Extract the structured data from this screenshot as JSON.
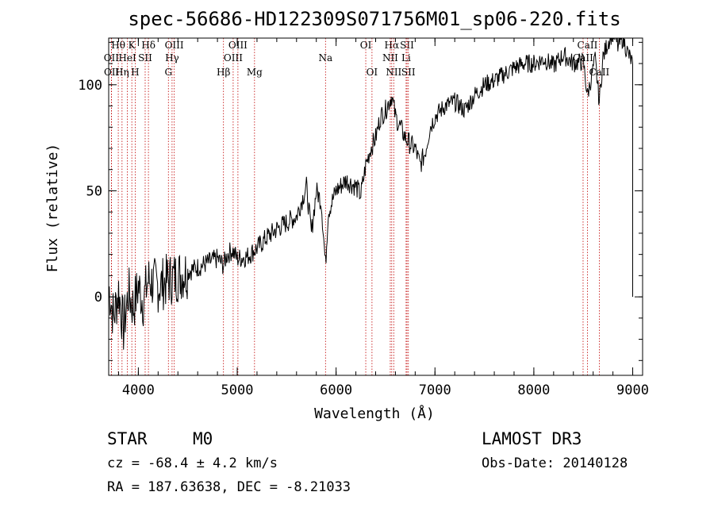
{
  "chart_data": {
    "type": "line",
    "title": "spec-56686-HD122309S071756M01_sp06-220.fits",
    "xlabel": "Wavelength (Å)",
    "ylabel": "Flux (relative)",
    "xlim": [
      3700,
      9100
    ],
    "ylim": [
      -37,
      122
    ],
    "x_ticks": [
      4000,
      5000,
      6000,
      7000,
      8000,
      9000
    ],
    "x_tick_labels": [
      "4000",
      "5000",
      "6000",
      "7000",
      "8000",
      "9000"
    ],
    "y_ticks": [
      0,
      50,
      100
    ],
    "y_tick_labels": [
      "0",
      "50",
      "100"
    ],
    "series": [
      {
        "name": "flux",
        "color": "#000000",
        "x": [
          3700,
          3750,
          3800,
          3850,
          3900,
          3950,
          4000,
          4050,
          4100,
          4200,
          4300,
          4400,
          4500,
          4600,
          4700,
          4800,
          4860,
          4900,
          4950,
          5000,
          5100,
          5200,
          5300,
          5400,
          5500,
          5600,
          5650,
          5700,
          5750,
          5800,
          5850,
          5893,
          5920,
          6000,
          6100,
          6200,
          6250,
          6300,
          6350,
          6400,
          6450,
          6500,
          6563,
          6600,
          6650,
          6700,
          6750,
          6800,
          6850,
          6900,
          6950,
          7000,
          7100,
          7200,
          7300,
          7400,
          7500,
          7600,
          7700,
          7800,
          7900,
          8000,
          8100,
          8200,
          8300,
          8400,
          8500,
          8542,
          8580,
          8620,
          8662,
          8700,
          8750,
          8800,
          8850,
          8900,
          8950,
          9000
        ],
        "y": [
          5,
          -10,
          3,
          -15,
          2,
          -5,
          5,
          -2,
          8,
          5,
          8,
          10,
          12,
          14,
          16,
          18,
          15,
          20,
          22,
          18,
          19,
          23,
          28,
          32,
          35,
          38,
          45,
          52,
          30,
          50,
          45,
          15,
          40,
          50,
          55,
          52,
          48,
          62,
          70,
          75,
          85,
          88,
          95,
          85,
          80,
          75,
          72,
          70,
          62,
          68,
          80,
          85,
          90,
          92,
          88,
          95,
          100,
          102,
          105,
          108,
          110,
          110,
          112,
          109,
          114,
          110,
          111,
          95,
          103,
          112,
          92,
          113,
          120,
          125,
          118,
          122,
          115,
          110
        ]
      }
    ],
    "spectral_lines": [
      {
        "label": "Hθ",
        "wavelength": 3797,
        "row": 1
      },
      {
        "label": "OII",
        "wavelength": 3727,
        "row": 2
      },
      {
        "label": "OII",
        "wavelength": 3729,
        "row": 3
      },
      {
        "label": "K",
        "wavelength": 3934,
        "row": 1
      },
      {
        "label": "HeI",
        "wavelength": 3889,
        "row": 2
      },
      {
        "label": "Hη",
        "wavelength": 3835,
        "row": 3
      },
      {
        "label": "Hδ",
        "wavelength": 4102,
        "row": 1
      },
      {
        "label": "SII",
        "wavelength": 4069,
        "row": 2
      },
      {
        "label": "H",
        "wavelength": 3968,
        "row": 3
      },
      {
        "label": "OIII",
        "wavelength": 4363,
        "row": 1
      },
      {
        "label": "Hγ",
        "wavelength": 4341,
        "row": 2
      },
      {
        "label": "G",
        "wavelength": 4304,
        "row": 3
      },
      {
        "label": "OIII",
        "wavelength": 5007,
        "row": 1
      },
      {
        "label": "OIII",
        "wavelength": 4959,
        "row": 2
      },
      {
        "label": "Hβ",
        "wavelength": 4861,
        "row": 3
      },
      {
        "label": "Mg",
        "wavelength": 5175,
        "row": 3
      },
      {
        "label": "Na",
        "wavelength": 5893,
        "row": 2
      },
      {
        "label": "OI",
        "wavelength": 6300,
        "row": 1
      },
      {
        "label": "OI",
        "wavelength": 6363,
        "row": 3
      },
      {
        "label": "Hα",
        "wavelength": 6563,
        "row": 1
      },
      {
        "label": "SII",
        "wavelength": 6717,
        "row": 1
      },
      {
        "label": "NII",
        "wavelength": 6548,
        "row": 2
      },
      {
        "label": "Li",
        "wavelength": 6708,
        "row": 2
      },
      {
        "label": "NII",
        "wavelength": 6583,
        "row": 3
      },
      {
        "label": "SII",
        "wavelength": 6731,
        "row": 3
      },
      {
        "label": "CaII",
        "wavelength": 8542,
        "row": 1
      },
      {
        "label": "CaII",
        "wavelength": 8498,
        "row": 2
      },
      {
        "label": "CaII",
        "wavelength": 8662,
        "row": 3
      }
    ],
    "line_color": "#c00000"
  },
  "annotations": {
    "object_class": "STAR",
    "subclass": "M0",
    "survey": "LAMOST DR3",
    "cz": "cz = -68.4 ± 4.2 km/s",
    "obs_date": "Obs-Date: 20140128",
    "coords": "RA = 187.63638, DEC =  -8.21033"
  }
}
